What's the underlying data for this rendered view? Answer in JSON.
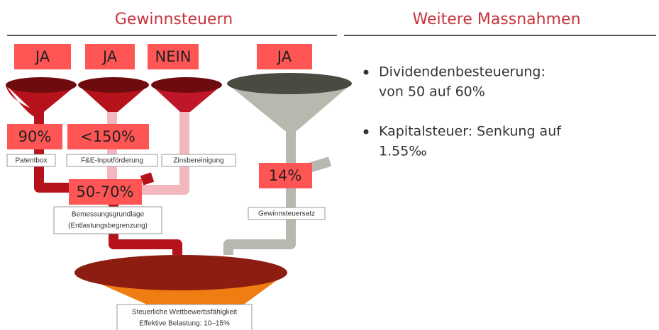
{
  "header": {
    "left": "Gewinnsteuern",
    "right": "Weitere Massnahmen"
  },
  "answers": [
    "JA",
    "JA",
    "NEIN",
    "JA"
  ],
  "rates": {
    "patent": "90%",
    "research": "<150%",
    "relief": "50-70%",
    "tax_rate": "14%"
  },
  "labels": {
    "patent": "Patentbox",
    "research": "F&E-Inputförderung",
    "interest": "Zinsbereinigung",
    "base": [
      "Bemessungsgrundlage",
      "(Entlastungsbegrenzung)"
    ],
    "tax_rate": "Gewinnsteuersatz",
    "result": [
      "Steuerliche Wettbewerbsfähigkeit",
      "Effektive Belastung: 10–15%"
    ]
  },
  "bullets": [
    [
      "Dividendenbesteuerung:",
      "von 50 auf 60%"
    ],
    [
      "Kapitalsteuer: Senkung auf",
      "1.55‰"
    ]
  ]
}
